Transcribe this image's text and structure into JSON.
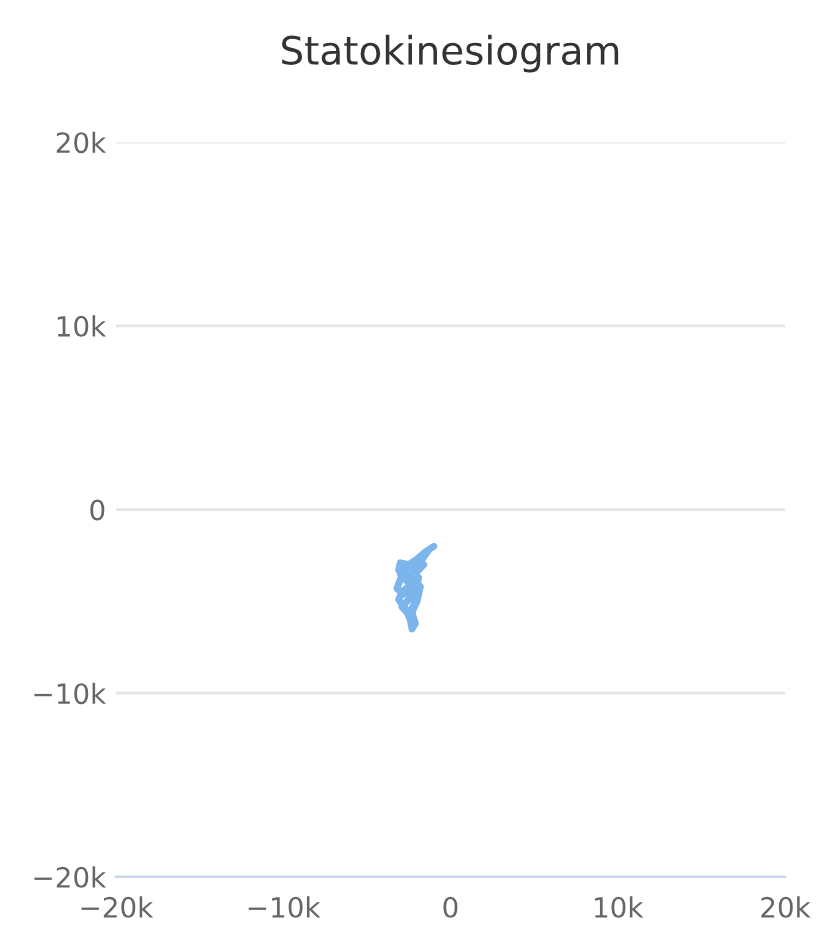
{
  "chart_data": {
    "type": "line",
    "title": "Statokinesiogram",
    "series": [
      {
        "color": "#7cb5ec",
        "x": [
          -1000,
          -1500,
          -2000,
          -2500,
          -3000,
          -3100,
          -2700,
          -2200,
          -1800,
          -1300,
          -1900,
          -2400,
          -3000,
          -3200,
          -2800,
          -2300,
          -1900,
          -2100,
          -2600,
          -2900,
          -2500,
          -2200,
          -2000,
          -2400,
          -2900,
          -3100,
          -2700,
          -2400,
          -2300,
          -2100,
          -2300,
          -2000,
          -1800,
          -2200,
          -2600,
          -2000,
          -1600,
          -2100,
          -2800,
          -3000,
          -2500
        ],
        "values": [
          -2000,
          -2300,
          -2700,
          -3000,
          -2900,
          -3300,
          -3600,
          -3200,
          -2600,
          -2200,
          -3000,
          -3500,
          -3800,
          -4300,
          -4600,
          -4200,
          -3700,
          -4400,
          -5000,
          -5300,
          -5700,
          -5200,
          -4700,
          -4100,
          -4500,
          -4900,
          -5400,
          -6000,
          -6500,
          -6200,
          -5600,
          -5000,
          -4200,
          -3800,
          -3300,
          -3400,
          -3000,
          -2900,
          -3100,
          -3500,
          -4000
        ]
      }
    ],
    "xlim": [
      -20000,
      20000
    ],
    "xticks": [
      {
        "value": -20000,
        "label": "−20k"
      },
      {
        "value": -10000,
        "label": "−10k"
      },
      {
        "value": 0,
        "label": "0"
      },
      {
        "value": 10000,
        "label": "10k"
      },
      {
        "value": 20000,
        "label": "20k"
      }
    ],
    "ylim": [
      -20000,
      20000
    ],
    "yticks": [
      {
        "value": -20000,
        "label": "−20k"
      },
      {
        "value": -10000,
        "label": "−10k"
      },
      {
        "value": 0,
        "label": "0"
      },
      {
        "value": 10000,
        "label": "10k"
      },
      {
        "value": 20000,
        "label": "20k"
      }
    ],
    "grid": "y",
    "legend": false,
    "marker": "none",
    "line_style": "solid"
  }
}
